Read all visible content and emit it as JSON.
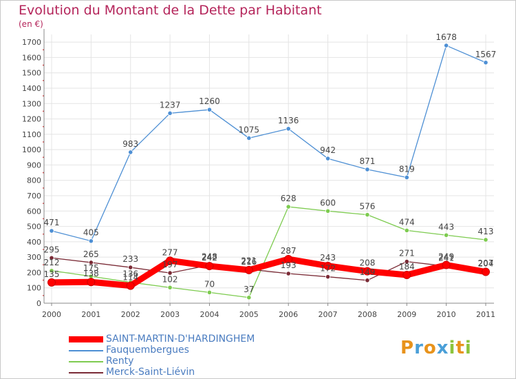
{
  "header": {
    "title": "Evolution du Montant de la Dette par Habitant",
    "subtitle": "(en €)"
  },
  "logo": {
    "letters": [
      "P",
      "r",
      "o",
      "x",
      "i",
      "t",
      "i"
    ],
    "colors": [
      "#e8931c",
      "#4a9fd8",
      "#e8931c",
      "#4a9fd8",
      "#8cc43c",
      "#e8931c",
      "#8cc43c"
    ]
  },
  "chart_data": {
    "type": "line",
    "title": "Evolution du Montant de la Dette par Habitant",
    "ylabel": "(en €)",
    "xlabel": "",
    "x": [
      "2000",
      "2001",
      "2002",
      "2003",
      "2004",
      "2005",
      "2006",
      "2007",
      "2008",
      "2009",
      "2010",
      "2011"
    ],
    "ylim": [
      0,
      1750
    ],
    "yticks": [
      0,
      100,
      200,
      300,
      400,
      500,
      600,
      700,
      800,
      900,
      1000,
      1100,
      1200,
      1300,
      1400,
      1500,
      1600,
      1700
    ],
    "grid": true,
    "legend": "bottom-left",
    "series": [
      {
        "name": "SAINT-MARTIN-D'HARDINGHEM",
        "color": "#ff0000",
        "values": [
          135,
          138,
          114,
          277,
          242,
          216,
          287,
          243,
          208,
          184,
          249,
          204
        ],
        "labels": [
          "135",
          "138",
          "114",
          "277",
          "242",
          "216",
          "287",
          "243",
          "208",
          "184",
          "249",
          "204"
        ]
      },
      {
        "name": "Fauquembergues",
        "color": "#4d8fd4",
        "values": [
          471,
          405,
          983,
          1237,
          1260,
          1075,
          1136,
          942,
          871,
          819,
          1678,
          1567
        ],
        "labels": [
          "471",
          "405",
          "983",
          "1237",
          "1260",
          "1075",
          "1136",
          "942",
          "871",
          "819",
          "1678",
          "1567"
        ]
      },
      {
        "name": "Renty",
        "color": "#7dcb4f",
        "values": [
          212,
          175,
          136,
          102,
          70,
          37,
          628,
          600,
          576,
          474,
          443,
          413
        ],
        "labels": [
          "212",
          "175",
          "136",
          "102",
          "70",
          "37",
          "628",
          "600",
          "576",
          "474",
          "443",
          "413"
        ]
      },
      {
        "name": "Merck-Saint-Liévin",
        "color": "#7a2a35",
        "values": [
          295,
          265,
          233,
          197,
          248,
          221,
          193,
          172,
          149,
          271,
          241,
          207
        ],
        "labels": [
          "295",
          "265",
          "233",
          "197",
          "248",
          "221",
          "193",
          "172",
          "149",
          "271",
          "241",
          "207"
        ]
      }
    ]
  }
}
